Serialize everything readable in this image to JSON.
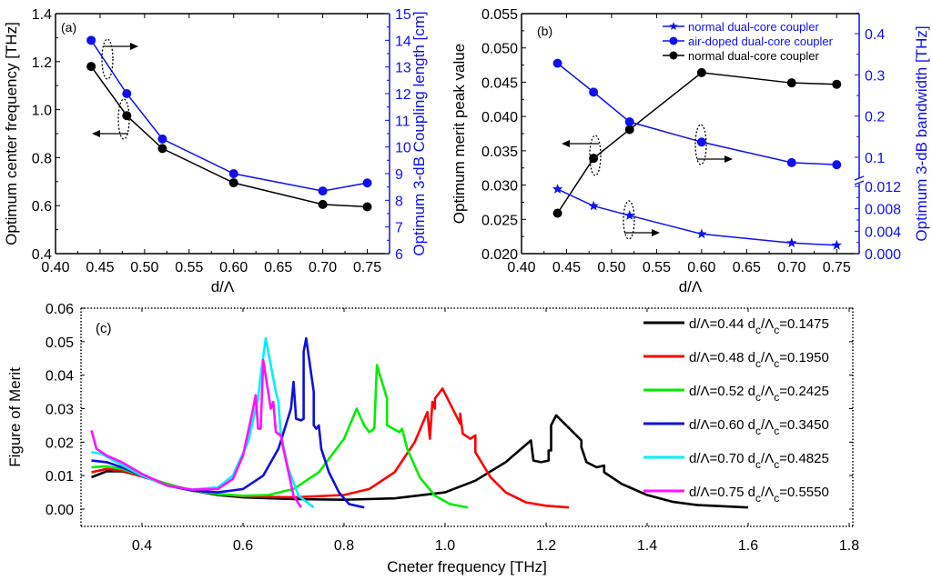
{
  "chart_data": [
    {
      "id": "a",
      "type": "line",
      "panel_tag": "(a)",
      "xlabel": "d/Λ",
      "ylabel": "Optimum center frequency [THz]",
      "y2label": "Optimum 3-dB Coupling length [cm]",
      "xlim": [
        0.4,
        0.775
      ],
      "ylim": [
        0.4,
        1.4
      ],
      "y2lim": [
        6,
        15
      ],
      "xticks": [
        "0.40",
        "0.45",
        "0.50",
        "0.55",
        "0.60",
        "0.65",
        "0.70",
        "0.75"
      ],
      "yticks": [
        "0.4",
        "0.6",
        "0.8",
        "1.0",
        "1.2",
        "1.4"
      ],
      "y2ticks": [
        "6",
        "7",
        "8",
        "9",
        "10",
        "11",
        "12",
        "13",
        "14",
        "15"
      ],
      "series": [
        {
          "name": "center frequency",
          "axis": "left",
          "color": "#000000",
          "marker": "circle",
          "x": [
            0.44,
            0.48,
            0.52,
            0.6,
            0.7,
            0.75
          ],
          "values": [
            1.18,
            0.975,
            0.838,
            0.695,
            0.605,
            0.595
          ]
        },
        {
          "name": "coupling length",
          "axis": "right",
          "color": "#1010ee",
          "marker": "circle",
          "x": [
            0.44,
            0.48,
            0.52,
            0.6,
            0.7,
            0.75
          ],
          "values": [
            14.0,
            12.0,
            10.3,
            9.0,
            8.35,
            8.65
          ]
        }
      ]
    },
    {
      "id": "b",
      "type": "line",
      "panel_tag": "(b)",
      "xlabel": "d/Λ",
      "ylabel": "Optimum merit peak value",
      "y2label": "Optimum 3-dB bandwidth [THz]",
      "xlim": [
        0.4,
        0.775
      ],
      "ylim": [
        0.02,
        0.055
      ],
      "y2_upper_ticks": [
        "0.1",
        "0.2",
        "0.3",
        "0.4"
      ],
      "y2_lower_ticks": [
        "0.000",
        "0.004",
        "0.008",
        "0.012"
      ],
      "y2_broken_axis": true,
      "xticks": [
        "0.40",
        "0.45",
        "0.50",
        "0.55",
        "0.60",
        "0.65",
        "0.70",
        "0.75"
      ],
      "yticks": [
        "0.020",
        "0.025",
        "0.030",
        "0.035",
        "0.040",
        "0.045",
        "0.050",
        "0.055"
      ],
      "legend": [
        {
          "label": "normal dual-core coupler",
          "color": "#1010ee",
          "marker": "star"
        },
        {
          "label": "air-doped dual-core coupler",
          "color": "#1010ee",
          "marker": "circle"
        },
        {
          "label": "normal dual-core coupler",
          "color": "#000000",
          "marker": "circle"
        }
      ],
      "legend_position": "top-right",
      "series": [
        {
          "name": "normal dual-core coupler (merit peak)",
          "axis": "left",
          "color": "#000000",
          "marker": "circle",
          "x": [
            0.44,
            0.48,
            0.52,
            0.6,
            0.7,
            0.75
          ],
          "values": [
            0.0259,
            0.0339,
            0.0381,
            0.0464,
            0.0449,
            0.0447
          ]
        },
        {
          "name": "air-doped dual-core coupler (bandwidth)",
          "axis": "right-upper",
          "color": "#1010ee",
          "marker": "circle",
          "x": [
            0.44,
            0.48,
            0.52,
            0.6,
            0.7,
            0.75
          ],
          "values": [
            0.328,
            0.258,
            0.186,
            0.137,
            0.087,
            0.082
          ]
        },
        {
          "name": "normal dual-core coupler (bandwidth)",
          "axis": "right-lower",
          "color": "#1010ee",
          "marker": "star",
          "x": [
            0.44,
            0.48,
            0.52,
            0.6,
            0.7,
            0.75
          ],
          "values": [
            0.0115,
            0.0085,
            0.0068,
            0.0035,
            0.0019,
            0.0015
          ]
        }
      ]
    },
    {
      "id": "c",
      "type": "line",
      "panel_tag": "(c)",
      "xlabel": "Cneter frequency [THz]",
      "ylabel": "Figure of Merit",
      "xlim": [
        0.3,
        1.8
      ],
      "ylim": [
        -0.005,
        0.06
      ],
      "xticks": [
        "0.4",
        "0.6",
        "0.8",
        "1.0",
        "1.2",
        "1.4",
        "1.6",
        "1.8"
      ],
      "yticks": [
        "0.00",
        "0.01",
        "0.02",
        "0.03",
        "0.04",
        "0.05",
        "0.06"
      ],
      "legend_position": "top-right",
      "series": [
        {
          "name": "d/Λ=0.44 d_c/Λ_c=0.1475",
          "label_main": "d/Λ=0.44 d",
          "sub1": "c",
          "mid": "/Λ",
          "sub2": "c",
          "tail": "=0.1475",
          "color": "#000000",
          "points": [
            [
              0.3,
              0.0095
            ],
            [
              0.33,
              0.0113
            ],
            [
              0.36,
              0.0113
            ],
            [
              0.4,
              0.0098
            ],
            [
              0.45,
              0.0075
            ],
            [
              0.5,
              0.0055
            ],
            [
              0.55,
              0.0042
            ],
            [
              0.6,
              0.0035
            ],
            [
              0.7,
              0.003
            ],
            [
              0.8,
              0.0028
            ],
            [
              0.9,
              0.0032
            ],
            [
              1.0,
              0.005
            ],
            [
              1.06,
              0.0085
            ],
            [
              1.12,
              0.014
            ],
            [
              1.17,
              0.0205
            ],
            [
              1.175,
              0.0145
            ],
            [
              1.19,
              0.014
            ],
            [
              1.205,
              0.0145
            ],
            [
              1.205,
              0.0175
            ],
            [
              1.21,
              0.0175
            ],
            [
              1.21,
              0.025
            ],
            [
              1.22,
              0.028
            ],
            [
              1.27,
              0.0205
            ],
            [
              1.27,
              0.0185
            ],
            [
              1.28,
              0.014
            ],
            [
              1.3,
              0.0125
            ],
            [
              1.315,
              0.013
            ],
            [
              1.315,
              0.011
            ],
            [
              1.35,
              0.0075
            ],
            [
              1.4,
              0.0042
            ],
            [
              1.45,
              0.0022
            ],
            [
              1.5,
              0.0012
            ],
            [
              1.6,
              0.0005
            ]
          ]
        },
        {
          "name": "d/Λ=0.48 d_c/Λ_c=0.1950",
          "label_main": "d/Λ=0.48 d",
          "sub1": "c",
          "mid": "/Λ",
          "sub2": "c",
          "tail": "=0.1950",
          "color": "#ff0000",
          "points": [
            [
              0.3,
              0.011
            ],
            [
              0.33,
              0.012
            ],
            [
              0.36,
              0.0115
            ],
            [
              0.4,
              0.0097
            ],
            [
              0.45,
              0.0075
            ],
            [
              0.5,
              0.0055
            ],
            [
              0.55,
              0.0045
            ],
            [
              0.6,
              0.0038
            ],
            [
              0.7,
              0.0035
            ],
            [
              0.8,
              0.0042
            ],
            [
              0.85,
              0.006
            ],
            [
              0.9,
              0.011
            ],
            [
              0.94,
              0.02
            ],
            [
              0.965,
              0.029
            ],
            [
              0.97,
              0.021
            ],
            [
              0.975,
              0.032
            ],
            [
              0.98,
              0.03
            ],
            [
              0.98,
              0.033
            ],
            [
              0.995,
              0.036
            ],
            [
              1.03,
              0.0255
            ],
            [
              1.03,
              0.0285
            ],
            [
              1.035,
              0.0225
            ],
            [
              1.05,
              0.021
            ],
            [
              1.06,
              0.022
            ],
            [
              1.06,
              0.017
            ],
            [
              1.09,
              0.0095
            ],
            [
              1.12,
              0.005
            ],
            [
              1.16,
              0.002
            ],
            [
              1.2,
              0.001
            ],
            [
              1.245,
              0.0005
            ]
          ]
        },
        {
          "name": "d/Λ=0.52 d_c/Λ_c=0.2425",
          "label_main": "d/Λ=0.52 d",
          "sub1": "c",
          "mid": "/Λ",
          "sub2": "c",
          "tail": "=0.2425",
          "color": "#00ee00",
          "points": [
            [
              0.3,
              0.0125
            ],
            [
              0.33,
              0.0128
            ],
            [
              0.36,
              0.012
            ],
            [
              0.4,
              0.01
            ],
            [
              0.45,
              0.0075
            ],
            [
              0.5,
              0.0055
            ],
            [
              0.55,
              0.0045
            ],
            [
              0.6,
              0.004
            ],
            [
              0.65,
              0.0042
            ],
            [
              0.7,
              0.006
            ],
            [
              0.75,
              0.011
            ],
            [
              0.8,
              0.021
            ],
            [
              0.825,
              0.03
            ],
            [
              0.84,
              0.025
            ],
            [
              0.85,
              0.023
            ],
            [
              0.86,
              0.024
            ],
            [
              0.865,
              0.043
            ],
            [
              0.885,
              0.033
            ],
            [
              0.885,
              0.025
            ],
            [
              0.91,
              0.023
            ],
            [
              0.915,
              0.024
            ],
            [
              0.925,
              0.018
            ],
            [
              0.95,
              0.0095
            ],
            [
              0.98,
              0.004
            ],
            [
              1.01,
              0.0015
            ],
            [
              1.045,
              0.0005
            ]
          ]
        },
        {
          "name": "d/Λ=0.60 d_c/Λ_c=0.3450",
          "label_main": "d/Λ=0.60 d",
          "sub1": "c",
          "mid": "/Λ",
          "sub2": "c",
          "tail": "=0.3450",
          "color": "#1010dd",
          "points": [
            [
              0.3,
              0.0145
            ],
            [
              0.33,
              0.014
            ],
            [
              0.36,
              0.0125
            ],
            [
              0.4,
              0.01
            ],
            [
              0.45,
              0.007
            ],
            [
              0.5,
              0.0055
            ],
            [
              0.55,
              0.005
            ],
            [
              0.6,
              0.006
            ],
            [
              0.64,
              0.01
            ],
            [
              0.67,
              0.018
            ],
            [
              0.695,
              0.03
            ],
            [
              0.7,
              0.038
            ],
            [
              0.705,
              0.027
            ],
            [
              0.715,
              0.0265
            ],
            [
              0.72,
              0.027
            ],
            [
              0.72,
              0.047
            ],
            [
              0.725,
              0.051
            ],
            [
              0.74,
              0.035
            ],
            [
              0.74,
              0.025
            ],
            [
              0.745,
              0.024
            ],
            [
              0.75,
              0.025
            ],
            [
              0.755,
              0.018
            ],
            [
              0.77,
              0.011
            ],
            [
              0.79,
              0.005
            ],
            [
              0.81,
              0.0015
            ],
            [
              0.84,
              0.0005
            ]
          ]
        },
        {
          "name": "d/Λ=0.70 d_c/Λ_c=0.4825",
          "label_main": "d/Λ=0.70 d",
          "sub1": "c",
          "mid": "/Λ",
          "sub2": "c",
          "tail": "=0.4825",
          "color": "#00eeff",
          "points": [
            [
              0.3,
              0.017
            ],
            [
              0.32,
              0.0165
            ],
            [
              0.35,
              0.014
            ],
            [
              0.4,
              0.01
            ],
            [
              0.45,
              0.007
            ],
            [
              0.5,
              0.0058
            ],
            [
              0.55,
              0.0065
            ],
            [
              0.58,
              0.01
            ],
            [
              0.61,
              0.02
            ],
            [
              0.63,
              0.033
            ],
            [
              0.635,
              0.04
            ],
            [
              0.645,
              0.051
            ],
            [
              0.66,
              0.039
            ],
            [
              0.665,
              0.035
            ],
            [
              0.67,
              0.032
            ],
            [
              0.675,
              0.022
            ],
            [
              0.69,
              0.012
            ],
            [
              0.71,
              0.004
            ],
            [
              0.74,
              0.0005
            ]
          ]
        },
        {
          "name": "d/Λ=0.75 d_c/Λ_c=0.5550",
          "label_main": "d/Λ=0.75 d",
          "sub1": "c",
          "mid": "/Λ",
          "sub2": "c",
          "tail": "=0.5550",
          "color": "#ff10ff",
          "points": [
            [
              0.3,
              0.0235
            ],
            [
              0.31,
              0.018
            ],
            [
              0.33,
              0.016
            ],
            [
              0.36,
              0.014
            ],
            [
              0.4,
              0.0105
            ],
            [
              0.45,
              0.007
            ],
            [
              0.5,
              0.0058
            ],
            [
              0.55,
              0.006
            ],
            [
              0.58,
              0.009
            ],
            [
              0.6,
              0.016
            ],
            [
              0.62,
              0.03
            ],
            [
              0.625,
              0.034
            ],
            [
              0.63,
              0.024
            ],
            [
              0.635,
              0.024
            ],
            [
              0.64,
              0.0445
            ],
            [
              0.655,
              0.03
            ],
            [
              0.66,
              0.032
            ],
            [
              0.665,
              0.023
            ],
            [
              0.675,
              0.022
            ],
            [
              0.68,
              0.018
            ],
            [
              0.7,
              0.004
            ],
            [
              0.715,
              0.0005
            ]
          ]
        }
      ]
    }
  ]
}
